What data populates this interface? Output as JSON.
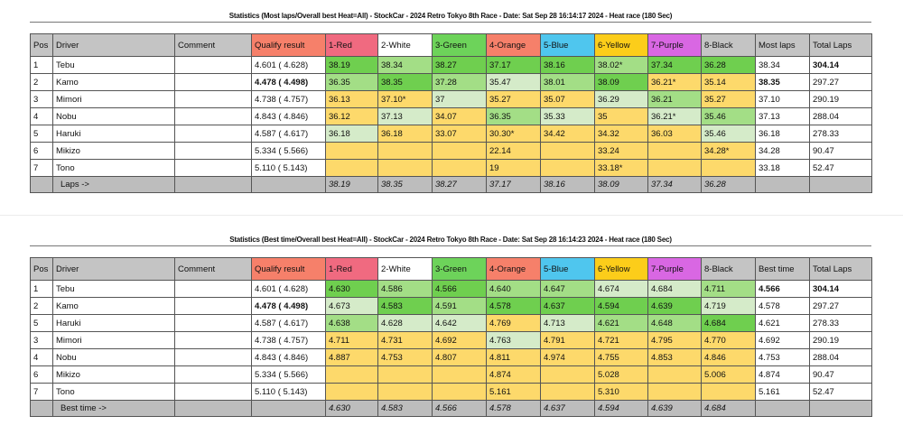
{
  "colors": {
    "1-Red": "#f06a80",
    "2-White": "#ffffff",
    "3-Green": "#6dd35a",
    "4-Orange": "#f6806a",
    "5-Blue": "#4fc6ee",
    "6-Yellow": "#fccd1a",
    "7-Purple": "#d967e3",
    "8-Black": "#c4c4c4",
    "Qualify result": "#f6806a"
  },
  "shade_legend": {
    "D": "#6fcf4f",
    "M": "#a3de86",
    "P": "#d5ebc9",
    "Y": "#fdd96b"
  },
  "tables": [
    {
      "title": "Statistics (Most laps/Overall best Heat=All) - StockCar - 2024 Retro Tokyo 8th Race - Date: Sat Sep 28 16:14:17 2024 - Heat race (180 Sec)",
      "headers": [
        "Pos",
        "Driver",
        "Comment",
        "Qualify result",
        "1-Red",
        "2-White",
        "3-Green",
        "4-Orange",
        "5-Blue",
        "6-Yellow",
        "7-Purple",
        "8-Black",
        "Most laps",
        "Total Laps"
      ],
      "rows": [
        {
          "pos": "1",
          "driver": "Tebu",
          "comment": "",
          "qualify": "4.601 ( 4.628)",
          "cells": [
            "38.19",
            "38.34",
            "38.27",
            "37.17",
            "38.16",
            "38.02*",
            "37.34",
            "36.28"
          ],
          "shade": [
            "D",
            "M",
            "D",
            "D",
            "D",
            "M",
            "D",
            "D"
          ],
          "best": "38.34",
          "total": "304.14",
          "bold_total": true
        },
        {
          "pos": "2",
          "driver": "Kamo",
          "comment": "",
          "qualify": "4.478 ( 4.498)",
          "bold_qualify": true,
          "cells": [
            "36.35",
            "38.35",
            "37.28",
            "35.47",
            "38.01",
            "38.09",
            "36.21*",
            "35.14"
          ],
          "shade": [
            "M",
            "D",
            "M",
            "P",
            "M",
            "D",
            "Y",
            "Y"
          ],
          "best": "38.35",
          "bold_best": true,
          "total": "297.27"
        },
        {
          "pos": "3",
          "driver": "Mimori",
          "comment": "",
          "qualify": "4.738 ( 4.757)",
          "cells": [
            "36.13",
            "37.10*",
            "37",
            "35.27",
            "35.07",
            "36.29",
            "36.21",
            "35.27"
          ],
          "shade": [
            "Y",
            "Y",
            "P",
            "Y",
            "Y",
            "P",
            "M",
            "Y"
          ],
          "best": "37.10",
          "total": "290.19"
        },
        {
          "pos": "4",
          "driver": "Nobu",
          "comment": "",
          "qualify": "4.843 ( 4.846)",
          "cells": [
            "36.12",
            "37.13",
            "34.07",
            "36.35",
            "35.33",
            "35",
            "36.21*",
            "35.46"
          ],
          "shade": [
            "Y",
            "P",
            "Y",
            "M",
            "P",
            "Y",
            "P",
            "M"
          ],
          "best": "37.13",
          "total": "288.04"
        },
        {
          "pos": "5",
          "driver": "Haruki",
          "comment": "",
          "qualify": "4.587 ( 4.617)",
          "cells": [
            "36.18",
            "36.18",
            "33.07",
            "30.30*",
            "34.42",
            "34.32",
            "36.03",
            "35.46"
          ],
          "shade": [
            "P",
            "Y",
            "Y",
            "Y",
            "Y",
            "Y",
            "Y",
            "P"
          ],
          "best": "36.18",
          "total": "278.33"
        },
        {
          "pos": "6",
          "driver": "Mikizo",
          "comment": "",
          "qualify": "5.334 ( 5.566)",
          "cells": [
            "",
            "",
            "",
            "22.14",
            "",
            "33.24",
            "",
            "34.28*"
          ],
          "shade": [
            "E",
            "E",
            "E",
            "Y",
            "E",
            "Y",
            "E",
            "Y"
          ],
          "best": "34.28",
          "total": "90.47"
        },
        {
          "pos": "7",
          "driver": "Tono",
          "comment": "",
          "qualify": "5.110 ( 5.143)",
          "cells": [
            "",
            "",
            "",
            "19",
            "",
            "33.18*",
            "",
            ""
          ],
          "shade": [
            "E",
            "E",
            "E",
            "Y",
            "E",
            "Y",
            "E",
            "E"
          ],
          "best": "33.18",
          "total": "52.47"
        }
      ],
      "footer_label": "Laps ->",
      "footer": [
        "38.19",
        "38.35",
        "38.27",
        "37.17",
        "38.16",
        "38.09",
        "37.34",
        "36.28"
      ]
    },
    {
      "title": "Statistics (Best time/Overall best Heat=All) - StockCar - 2024 Retro Tokyo 8th Race - Date: Sat Sep 28 16:14:23 2024 - Heat race (180 Sec)",
      "headers": [
        "Pos",
        "Driver",
        "Comment",
        "Qualify result",
        "1-Red",
        "2-White",
        "3-Green",
        "4-Orange",
        "5-Blue",
        "6-Yellow",
        "7-Purple",
        "8-Black",
        "Best time",
        "Total Laps"
      ],
      "rows": [
        {
          "pos": "1",
          "driver": "Tebu",
          "comment": "",
          "qualify": "4.601 ( 4.628)",
          "cells": [
            "4.630",
            "4.586",
            "4.566",
            "4.640",
            "4.647",
            "4.674",
            "4.684",
            "4.711"
          ],
          "shade": [
            "D",
            "M",
            "D",
            "M",
            "M",
            "P",
            "P",
            "M"
          ],
          "best": "4.566",
          "bold_best": true,
          "total": "304.14",
          "bold_total": true
        },
        {
          "pos": "2",
          "driver": "Kamo",
          "comment": "",
          "qualify": "4.478 ( 4.498)",
          "bold_qualify": true,
          "cells": [
            "4.673",
            "4.583",
            "4.591",
            "4.578",
            "4.637",
            "4.594",
            "4.639",
            "4.719"
          ],
          "shade": [
            "P",
            "D",
            "M",
            "D",
            "D",
            "D",
            "D",
            "P"
          ],
          "best": "4.578",
          "total": "297.27"
        },
        {
          "pos": "5",
          "driver": "Haruki",
          "comment": "",
          "qualify": "4.587 ( 4.617)",
          "cells": [
            "4.638",
            "4.628",
            "4.642",
            "4.769",
            "4.713",
            "4.621",
            "4.648",
            "4.684"
          ],
          "shade": [
            "M",
            "P",
            "P",
            "Y",
            "P",
            "M",
            "M",
            "D"
          ],
          "best": "4.621",
          "total": "278.33"
        },
        {
          "pos": "3",
          "driver": "Mimori",
          "comment": "",
          "qualify": "4.738 ( 4.757)",
          "cells": [
            "4.711",
            "4.731",
            "4.692",
            "4.763",
            "4.791",
            "4.721",
            "4.795",
            "4.770"
          ],
          "shade": [
            "Y",
            "Y",
            "Y",
            "P",
            "Y",
            "Y",
            "Y",
            "Y"
          ],
          "best": "4.692",
          "total": "290.19"
        },
        {
          "pos": "4",
          "driver": "Nobu",
          "comment": "",
          "qualify": "4.843 ( 4.846)",
          "cells": [
            "4.887",
            "4.753",
            "4.807",
            "4.811",
            "4.974",
            "4.755",
            "4.853",
            "4.846"
          ],
          "shade": [
            "Y",
            "Y",
            "Y",
            "Y",
            "Y",
            "Y",
            "Y",
            "Y"
          ],
          "best": "4.753",
          "total": "288.04"
        },
        {
          "pos": "6",
          "driver": "Mikizo",
          "comment": "",
          "qualify": "5.334 ( 5.566)",
          "cells": [
            "",
            "",
            "",
            "4.874",
            "",
            "5.028",
            "",
            "5.006"
          ],
          "shade": [
            "E",
            "E",
            "E",
            "Y",
            "E",
            "Y",
            "E",
            "Y"
          ],
          "best": "4.874",
          "total": "90.47"
        },
        {
          "pos": "7",
          "driver": "Tono",
          "comment": "",
          "qualify": "5.110 ( 5.143)",
          "cells": [
            "",
            "",
            "",
            "5.161",
            "",
            "5.310",
            "",
            ""
          ],
          "shade": [
            "E",
            "E",
            "E",
            "Y",
            "E",
            "Y",
            "E",
            "E"
          ],
          "best": "5.161",
          "total": "52.47"
        }
      ],
      "footer_label": "Best time ->",
      "footer": [
        "4.630",
        "4.583",
        "4.566",
        "4.578",
        "4.637",
        "4.594",
        "4.639",
        "4.684"
      ]
    }
  ]
}
